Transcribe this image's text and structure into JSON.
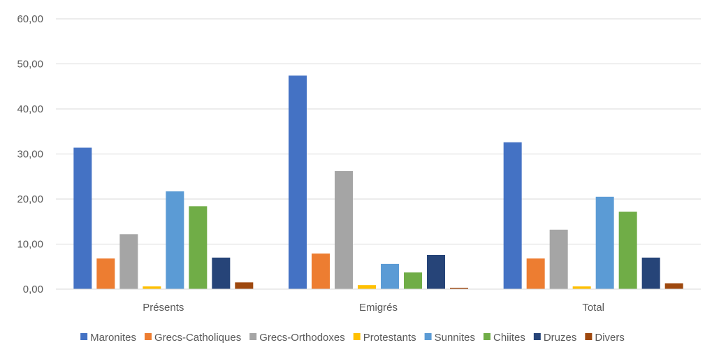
{
  "chart_data": {
    "type": "bar",
    "categories": [
      "Présents",
      "Emigrés",
      "Total"
    ],
    "series": [
      {
        "name": "Maronites",
        "color": "#4472C4",
        "values": [
          31.4,
          47.4,
          32.6
        ]
      },
      {
        "name": "Grecs-Catholiques",
        "color": "#ED7D31",
        "values": [
          6.8,
          7.9,
          6.8
        ]
      },
      {
        "name": "Grecs-Orthodoxes",
        "color": "#A5A5A5",
        "values": [
          12.2,
          26.2,
          13.2
        ]
      },
      {
        "name": "Protestants",
        "color": "#FFC000",
        "values": [
          0.6,
          0.9,
          0.6
        ]
      },
      {
        "name": "Sunnites",
        "color": "#5B9BD5",
        "values": [
          21.7,
          5.6,
          20.5
        ]
      },
      {
        "name": "Chiites",
        "color": "#70AD47",
        "values": [
          18.4,
          3.7,
          17.2
        ]
      },
      {
        "name": "Druzes",
        "color": "#264478",
        "values": [
          7.0,
          7.6,
          7.0
        ]
      },
      {
        "name": "Divers",
        "color": "#9E480E",
        "values": [
          1.5,
          0.3,
          1.3
        ]
      }
    ],
    "ylim": [
      0,
      60
    ],
    "yticks": [
      "0,00",
      "10,00",
      "20,00",
      "30,00",
      "40,00",
      "50,00",
      "60,00"
    ],
    "grid": true,
    "legend_position": "bottom"
  }
}
